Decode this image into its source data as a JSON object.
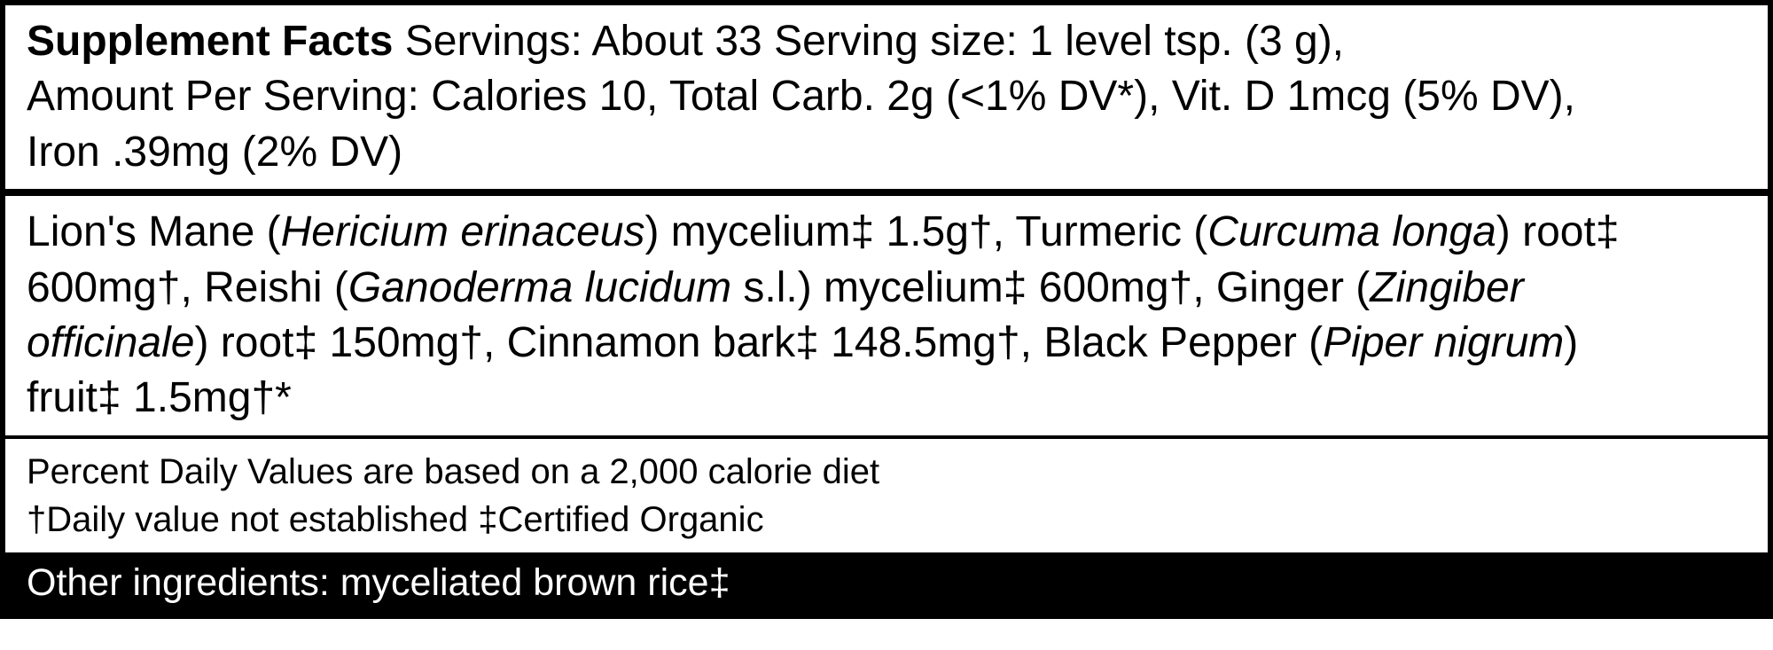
{
  "title": "Supplement Facts",
  "header": {
    "servings_label": "Servings:",
    "servings_value": "About 33",
    "serving_size_label": "Serving size:",
    "serving_size_value": "1 level tsp. (3 g),",
    "amount_label": "Amount Per Serving:",
    "calories_label": "Calories",
    "calories_value": "10,",
    "carb_label": "Total Carb.",
    "carb_value": "2g (<1% DV*),",
    "vitd_label": "Vit. D",
    "vitd_value": "1mcg (5% DV),",
    "iron_label": "Iron",
    "iron_value": ".39mg (2% DV)"
  },
  "ingredients": {
    "lions_mane_prefix": "Lion's Mane (",
    "lions_mane_sci": "Hericium erinaceus",
    "lions_mane_suffix": ") mycelium‡ 1.5g†, Turmeric (",
    "turmeric_sci": "Curcuma longa",
    "turmeric_suffix": ") root‡",
    "line2_prefix": "600mg†, Reishi (",
    "reishi_sci": "Ganoderma lucidum ",
    "reishi_sl": "s.l.) mycelium‡ 600mg†, Ginger (",
    "ginger_sci": "Zingiber",
    "line3_sci": "officinale",
    "line3_suffix": ") root‡ 150mg†, Cinnamon bark‡ 148.5mg†, Black Pepper (",
    "pepper_sci": "Piper nigrum",
    "pepper_suffix": ")",
    "line4": "fruit‡ 1.5mg†*"
  },
  "footer": {
    "dv_note": "Percent Daily Values are based on a 2,000 calorie diet",
    "dagger_note": "†Daily value not established  ‡Certified Organic"
  },
  "other": {
    "text": "Other ingredients: myceliated brown rice‡"
  }
}
